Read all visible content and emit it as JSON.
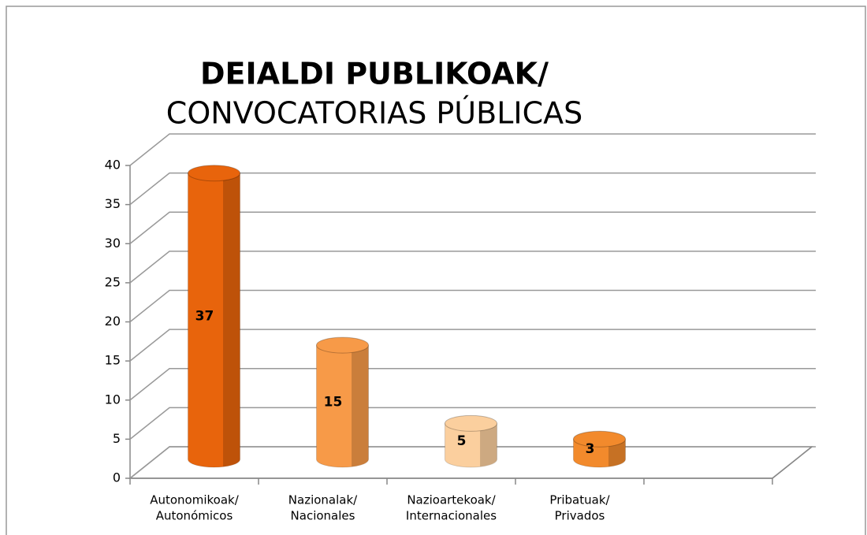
{
  "chart_data": {
    "type": "bar3d",
    "title": [
      "DEIALDI PUBLIKOAK/",
      "CONVOCATORIAS PÚBLICAS"
    ],
    "categories": [
      [
        "Autonomikoak/",
        "Autonómicos"
      ],
      [
        "Nazionalak/",
        "Nacionales"
      ],
      [
        "Nazioartekoak/",
        "Internacionales"
      ],
      [
        "Pribatuak/",
        "Privados"
      ],
      null
    ],
    "values": [
      37,
      15,
      5,
      3,
      null
    ],
    "colors": [
      "#e8640c",
      "#f79a48",
      "#fbcf9e",
      "#f28a2c"
    ],
    "ylim": [
      0,
      40
    ],
    "yticks": [
      0,
      5,
      10,
      15,
      20,
      25,
      30,
      35,
      40
    ],
    "grid": true
  }
}
